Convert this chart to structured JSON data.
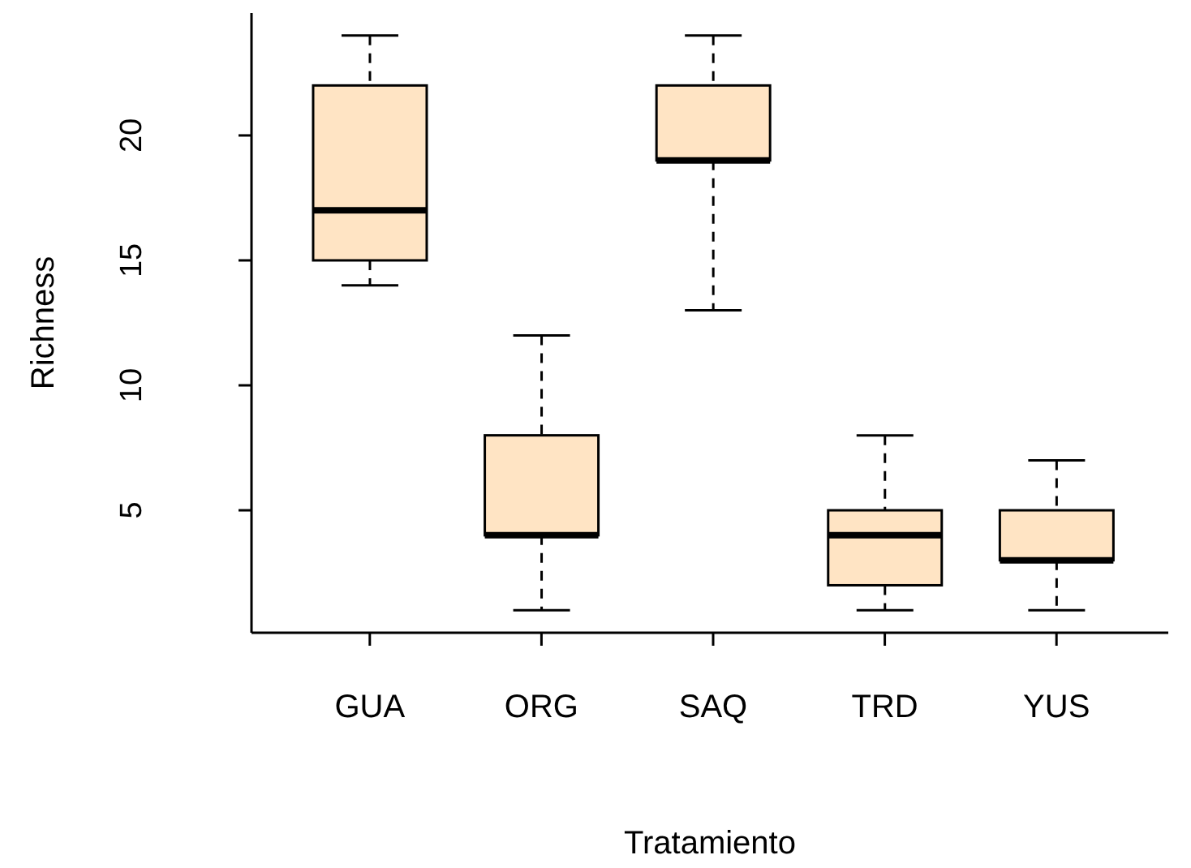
{
  "chart_data": {
    "type": "box",
    "xlabel": "Tratamiento",
    "ylabel": "Richness",
    "categories": [
      "GUA",
      "ORG",
      "SAQ",
      "TRD",
      "YUS"
    ],
    "color": "#ffe4c4",
    "boxes": [
      {
        "low": 14,
        "q1": 15,
        "median": 17,
        "q3": 22,
        "high": 24
      },
      {
        "low": 1,
        "q1": 4,
        "median": 4,
        "q3": 8,
        "high": 12
      },
      {
        "low": 13,
        "q1": 19,
        "median": 19,
        "q3": 22,
        "high": 24
      },
      {
        "low": 1,
        "q1": 2,
        "median": 4,
        "q3": 5,
        "high": 8
      },
      {
        "low": 1,
        "q1": 3,
        "median": 3,
        "q3": 5,
        "high": 7
      }
    ],
    "ylim": [
      0.1,
      24.9
    ],
    "yticks": [
      5,
      10,
      15,
      20
    ]
  }
}
